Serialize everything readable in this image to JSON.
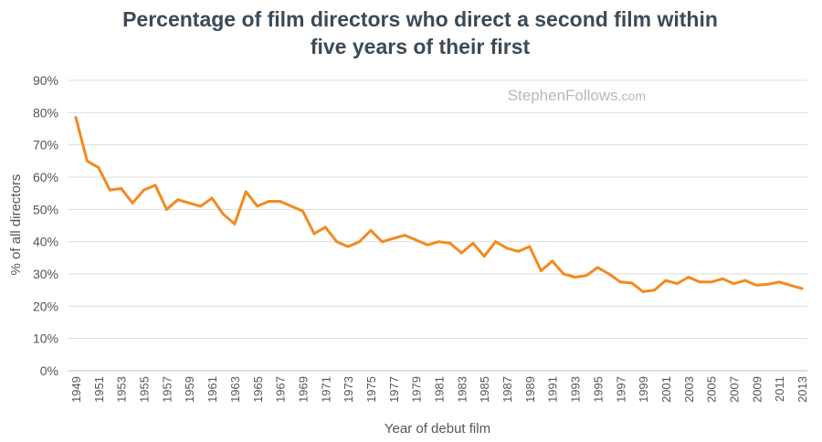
{
  "title_line1": "Percentage of film directors who direct a second film within",
  "title_line2": "five years of their first",
  "watermark_main": "StephenFollows",
  "watermark_sub": ".com",
  "chart_data": {
    "type": "line",
    "title": "Percentage of film directors who direct a second film within five years of their first",
    "xlabel": "Year of debut film",
    "ylabel": "% of all directors",
    "ylim": [
      0,
      90
    ],
    "yticks": [
      "0%",
      "10%",
      "20%",
      "30%",
      "40%",
      "50%",
      "60%",
      "70%",
      "80%",
      "90%"
    ],
    "grid": true,
    "line_color": "#f5891f",
    "x": [
      1949,
      1950,
      1951,
      1952,
      1953,
      1954,
      1955,
      1956,
      1957,
      1958,
      1959,
      1960,
      1961,
      1962,
      1963,
      1964,
      1965,
      1966,
      1967,
      1968,
      1969,
      1970,
      1971,
      1972,
      1973,
      1974,
      1975,
      1976,
      1977,
      1978,
      1979,
      1980,
      1981,
      1982,
      1983,
      1984,
      1985,
      1986,
      1987,
      1988,
      1989,
      1990,
      1991,
      1992,
      1993,
      1994,
      1995,
      1996,
      1997,
      1998,
      1999,
      2000,
      2001,
      2002,
      2003,
      2004,
      2005,
      2006,
      2007,
      2008,
      2009,
      2010,
      2011,
      2012,
      2013
    ],
    "values": [
      78.5,
      65,
      63,
      56,
      56.5,
      52,
      56,
      57.5,
      50,
      53,
      52,
      51,
      53.5,
      48.5,
      45.5,
      55.5,
      51,
      52.5,
      52.5,
      51,
      49.5,
      42.5,
      44.5,
      40,
      38.5,
      40,
      43.5,
      40,
      41,
      42,
      40.5,
      39,
      40,
      39.5,
      36.5,
      39.5,
      35.5,
      40,
      38,
      37,
      38.5,
      31,
      34,
      30,
      29,
      29.5,
      32,
      30,
      27.5,
      27.2,
      24.5,
      25,
      28,
      27,
      29,
      27.5,
      27.5,
      28.5,
      27,
      28,
      26.5,
      26.8,
      27.5,
      26.5,
      25.5
    ]
  }
}
